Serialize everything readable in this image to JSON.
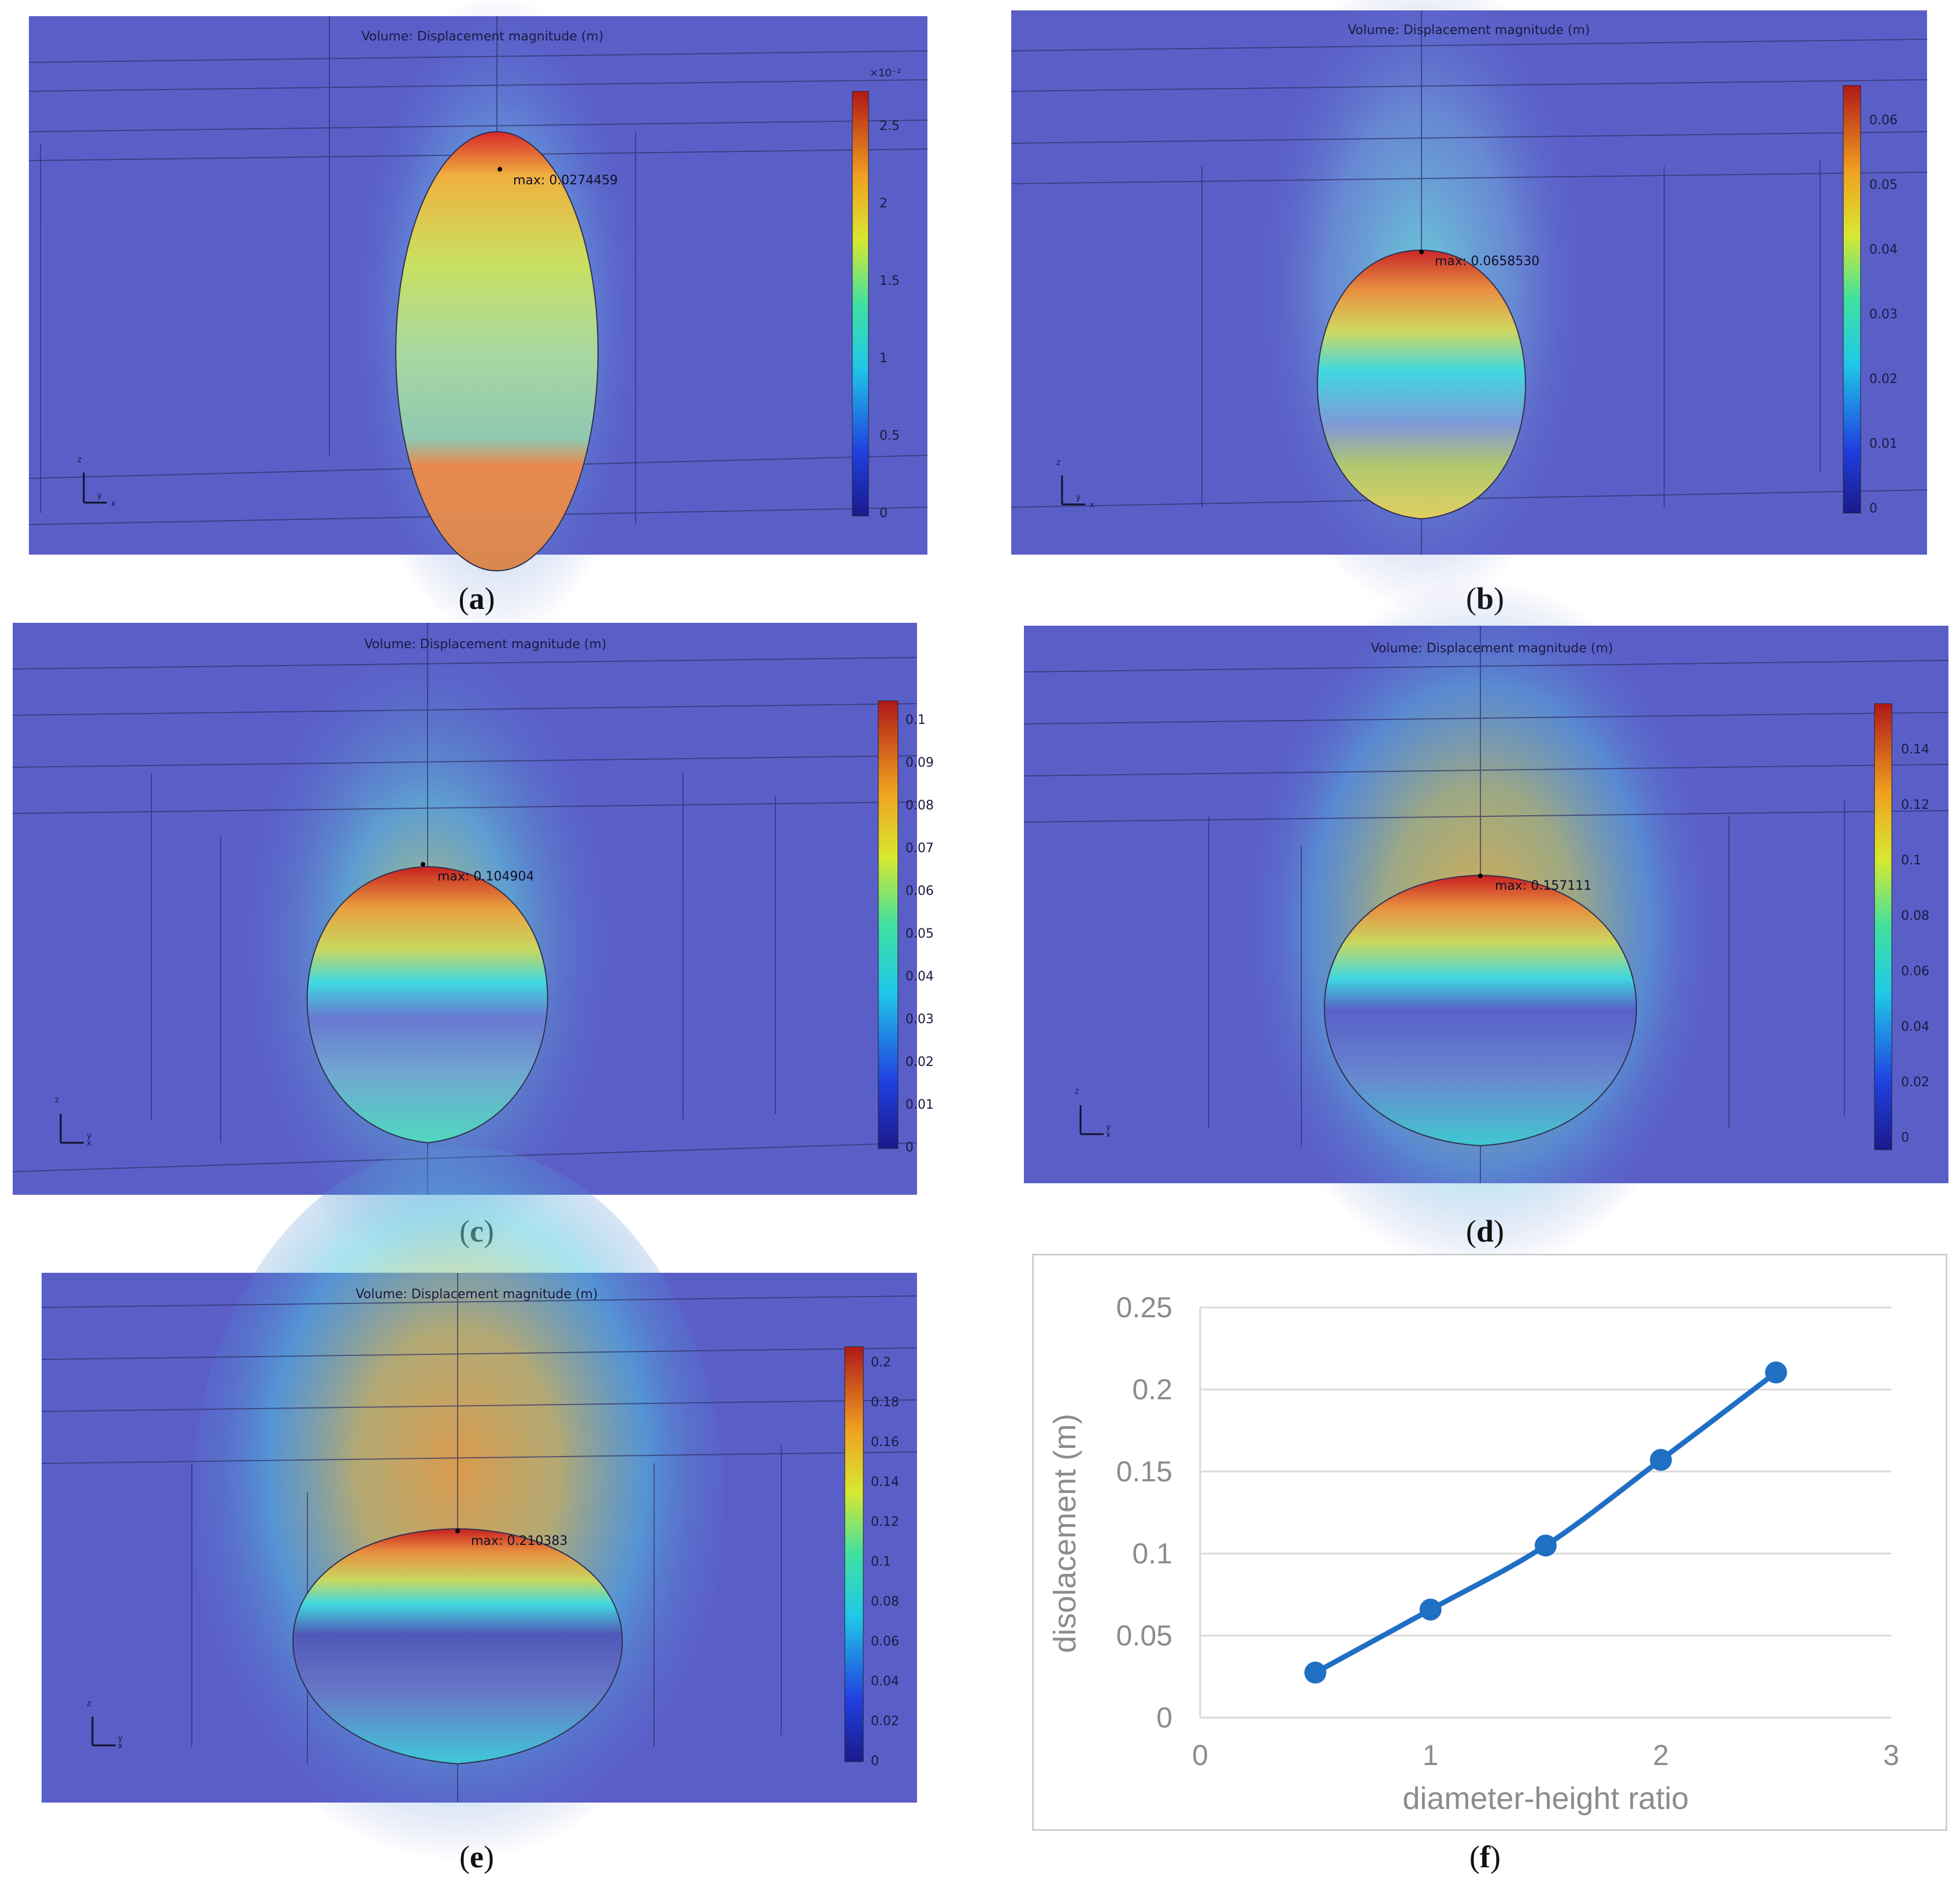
{
  "panels": [
    {
      "id": "a",
      "title": "Volume: Displacement magnitude (m)",
      "max_label": "max: 0.0274459",
      "colorbar_ticks": [
        "2.5",
        "2",
        "1.5",
        "1",
        "0.5",
        "0"
      ],
      "colorbar_exponent": "×10⁻²",
      "caption": "a"
    },
    {
      "id": "b",
      "title": "Volume: Displacement magnitude (m)",
      "max_label": "max: 0.0658530",
      "colorbar_ticks": [
        "0.06",
        "0.05",
        "0.04",
        "0.03",
        "0.02",
        "0.01",
        "0"
      ],
      "caption": "b"
    },
    {
      "id": "c",
      "title": "Volume: Displacement magnitude (m)",
      "max_label": "max: 0.104904",
      "colorbar_ticks": [
        "0.1",
        "0.09",
        "0.08",
        "0.07",
        "0.06",
        "0.05",
        "0.04",
        "0.03",
        "0.02",
        "0.01",
        "0"
      ],
      "caption": "c"
    },
    {
      "id": "d",
      "title": "Volume: Displacement magnitude (m)",
      "max_label": "max: 0.157111",
      "colorbar_ticks": [
        "0.14",
        "0.12",
        "0.1",
        "0.08",
        "0.06",
        "0.04",
        "0.02",
        "0"
      ],
      "caption": "d"
    },
    {
      "id": "e",
      "title": "Volume: Displacement magnitude (m)",
      "max_label": "max: 0.210383",
      "colorbar_ticks": [
        "0.2",
        "0.18",
        "0.16",
        "0.14",
        "0.12",
        "0.1",
        "0.08",
        "0.06",
        "0.04",
        "0.02",
        "0"
      ],
      "caption": "e"
    }
  ],
  "axis_labels": {
    "z": "z",
    "y": "y",
    "x": "x"
  },
  "chart_caption": "f",
  "paren_open": "(",
  "paren_close": ")",
  "colors": {
    "line": "#1f6fc4",
    "grid": "#d9d9d9",
    "axis_text": "#8c8c8c"
  },
  "chart_data": {
    "type": "line",
    "title": "",
    "xlabel": "diameter-height ratio",
    "ylabel": "disolacement (m)",
    "x": [
      0.5,
      1,
      1.5,
      2,
      2.5
    ],
    "y": [
      0.0274459,
      0.065853,
      0.104904,
      0.157111,
      0.210383
    ],
    "xlim": [
      0,
      3
    ],
    "ylim": [
      0,
      0.25
    ],
    "xticks": [
      "0",
      "1",
      "2",
      "3"
    ],
    "yticks": [
      "0",
      "0.05",
      "0.1",
      "0.15",
      "0.2",
      "0.25"
    ],
    "grid": true,
    "markers": true
  }
}
